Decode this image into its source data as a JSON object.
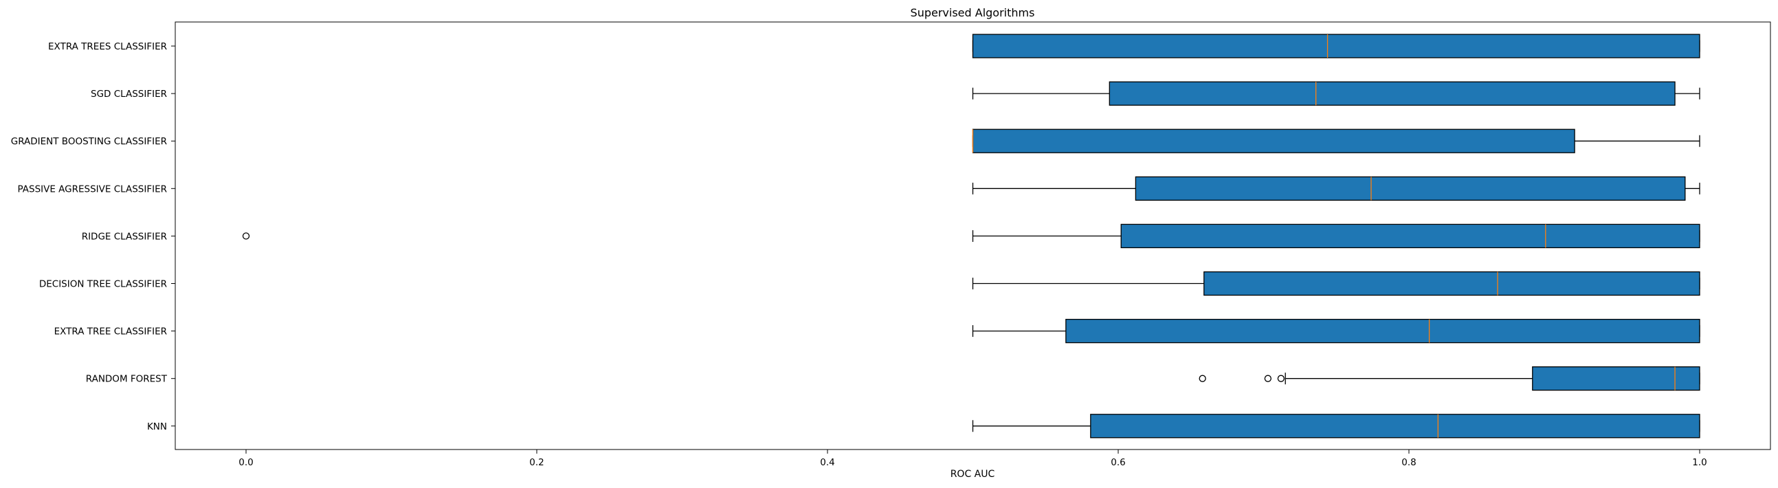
{
  "chart_data": {
    "type": "boxplot",
    "orientation": "horizontal",
    "title": "Supervised Algorithms",
    "xlabel": "ROC AUC",
    "ylabel": "",
    "xlim": [
      -0.05,
      1.05
    ],
    "xticks": [
      {
        "value": 0.0,
        "label": "0.0"
      },
      {
        "value": 0.2,
        "label": "0.2"
      },
      {
        "value": 0.4,
        "label": "0.4"
      },
      {
        "value": 0.6,
        "label": "0.6"
      },
      {
        "value": 0.8,
        "label": "0.8"
      },
      {
        "value": 1.0,
        "label": "1.0"
      }
    ],
    "grid": false,
    "box_color": "#1f77b4",
    "median_color": "#ff7f0e",
    "categories": [
      "EXTRA TREES CLASSIFIER",
      "SGD CLASSIFIER",
      "GRADIENT BOOSTING CLASSIFIER",
      "PASSIVE AGRESSIVE CLASSIFIER",
      "RIDGE CLASSIFIER",
      "DECISION TREE CLASSIFIER",
      "EXTRA TREE CLASSIFIER",
      "RANDOM FOREST",
      "KNN"
    ],
    "boxes": [
      {
        "whislo": 0.5,
        "q1": 0.5,
        "med": 0.744,
        "q3": 1.0,
        "whishi": 1.0,
        "fliers": []
      },
      {
        "whislo": 0.5,
        "q1": 0.594,
        "med": 0.736,
        "q3": 0.983,
        "whishi": 1.0,
        "fliers": []
      },
      {
        "whislo": 0.5,
        "q1": 0.5,
        "med": 0.5,
        "q3": 0.914,
        "whishi": 1.0,
        "fliers": []
      },
      {
        "whislo": 0.5,
        "q1": 0.612,
        "med": 0.774,
        "q3": 0.99,
        "whishi": 1.0,
        "fliers": []
      },
      {
        "whislo": 0.5,
        "q1": 0.602,
        "med": 0.894,
        "q3": 1.0,
        "whishi": 1.0,
        "fliers": [
          0.0
        ]
      },
      {
        "whislo": 0.5,
        "q1": 0.659,
        "med": 0.861,
        "q3": 1.0,
        "whishi": 1.0,
        "fliers": []
      },
      {
        "whislo": 0.5,
        "q1": 0.564,
        "med": 0.814,
        "q3": 1.0,
        "whishi": 1.0,
        "fliers": []
      },
      {
        "whislo": 0.715,
        "q1": 0.885,
        "med": 0.983,
        "q3": 1.0,
        "whishi": 1.0,
        "fliers": [
          0.658,
          0.703,
          0.712
        ]
      },
      {
        "whislo": 0.5,
        "q1": 0.581,
        "med": 0.82,
        "q3": 1.0,
        "whishi": 1.0,
        "fliers": []
      }
    ]
  }
}
